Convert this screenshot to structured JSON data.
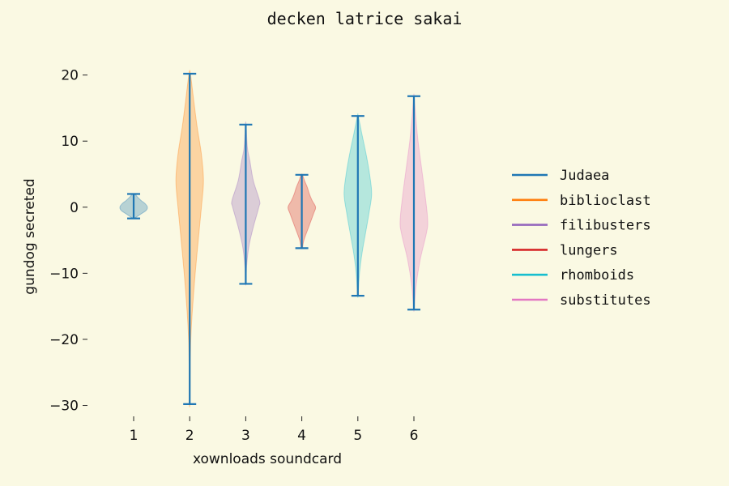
{
  "chart_data": {
    "type": "violin",
    "title": "decken latrice sakai",
    "xlabel": "xownloads soundcard",
    "ylabel": "gundog secreted",
    "ylim": [
      -33,
      24
    ],
    "yticks": [
      20,
      10,
      0,
      -10,
      -20,
      -30
    ],
    "ytick_labels": [
      "20",
      "10",
      "0",
      "−10",
      "−20",
      "−30"
    ],
    "categories": [
      "1",
      "2",
      "3",
      "4",
      "5",
      "6"
    ],
    "legend_position": "right",
    "whisker_color": "#1f77b4",
    "series": [
      {
        "name": "Judaea",
        "color": "#1f77b4",
        "min": -1.7,
        "max": 2.0,
        "profile": [
          [
            -1.7,
            0.05
          ],
          [
            -1.0,
            0.55
          ],
          [
            -0.5,
            0.9
          ],
          [
            0,
            1.0
          ],
          [
            0.5,
            0.85
          ],
          [
            1.0,
            0.55
          ],
          [
            1.5,
            0.3
          ],
          [
            2.0,
            0.08
          ]
        ]
      },
      {
        "name": "biblioclast",
        "color": "#ff7f0e",
        "min": -29.8,
        "max": 20.2,
        "profile": [
          [
            -29.8,
            0.02
          ],
          [
            -24,
            0.04
          ],
          [
            -20,
            0.08
          ],
          [
            -16,
            0.18
          ],
          [
            -10,
            0.4
          ],
          [
            -5,
            0.62
          ],
          [
            0,
            0.85
          ],
          [
            4,
            1.0
          ],
          [
            8,
            0.85
          ],
          [
            12,
            0.55
          ],
          [
            16,
            0.3
          ],
          [
            20.2,
            0.05
          ]
        ]
      },
      {
        "name": "filibusters",
        "color": "#9467bd",
        "min": -11.6,
        "max": 12.5,
        "profile": [
          [
            -11.6,
            0.02
          ],
          [
            -9,
            0.06
          ],
          [
            -6,
            0.22
          ],
          [
            -3,
            0.55
          ],
          [
            0,
            0.95
          ],
          [
            1,
            1.0
          ],
          [
            4,
            0.55
          ],
          [
            7,
            0.3
          ],
          [
            9,
            0.12
          ],
          [
            12.5,
            0.02
          ]
        ]
      },
      {
        "name": "lungers",
        "color": "#d62728",
        "min": -6.2,
        "max": 4.9,
        "profile": [
          [
            -6.2,
            0.05
          ],
          [
            -5,
            0.15
          ],
          [
            -3,
            0.5
          ],
          [
            -1,
            0.85
          ],
          [
            0,
            1.0
          ],
          [
            1,
            0.75
          ],
          [
            2,
            0.55
          ],
          [
            3,
            0.4
          ],
          [
            4,
            0.2
          ],
          [
            4.9,
            0.05
          ]
        ]
      },
      {
        "name": "rhomboids",
        "color": "#17becf",
        "min": -13.4,
        "max": 13.8,
        "profile": [
          [
            -13.4,
            0.02
          ],
          [
            -10,
            0.12
          ],
          [
            -7,
            0.3
          ],
          [
            -4,
            0.55
          ],
          [
            -1,
            0.8
          ],
          [
            2,
            1.0
          ],
          [
            5,
            0.85
          ],
          [
            8,
            0.6
          ],
          [
            11,
            0.3
          ],
          [
            13.8,
            0.03
          ]
        ]
      },
      {
        "name": "substitutes",
        "color": "#e377c2",
        "min": -15.5,
        "max": 16.8,
        "profile": [
          [
            -15.5,
            0.02
          ],
          [
            -12,
            0.15
          ],
          [
            -8,
            0.45
          ],
          [
            -4,
            0.9
          ],
          [
            -2,
            1.0
          ],
          [
            2,
            0.8
          ],
          [
            6,
            0.55
          ],
          [
            10,
            0.3
          ],
          [
            14,
            0.12
          ],
          [
            16.8,
            0.02
          ]
        ]
      }
    ]
  }
}
